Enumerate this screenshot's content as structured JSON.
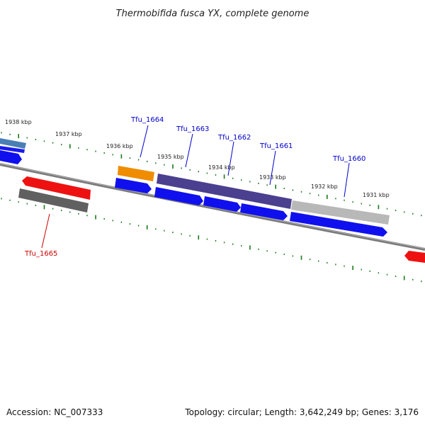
{
  "title": "Thermobifida fusca YX, complete genome",
  "footer": {
    "accession": "Accession: NC_007333",
    "stats": "Topology: circular; Length: 3,642,249 bp; Genes: 3,176"
  },
  "colors": {
    "backbone": "#7a7a7a",
    "tick": "#1a7a1a",
    "cds_blue": "#1010ee",
    "cds_red": "#ee1111",
    "label_blue": "#0000cc",
    "label_red": "#cc0000",
    "slate": "#4b3f8f",
    "orange": "#f08c00",
    "dark_gray": "#606060",
    "light_gray": "#b8b8b8",
    "steel": "#4a7fb5"
  },
  "scale_labels": [
    "1938 kbp",
    "1937 kbp",
    "1936 kbp",
    "1935 kbp",
    "1934 kbp",
    "1933 kbp",
    "1932 kbp",
    "1931 kbp"
  ],
  "gene_labels": [
    {
      "name": "Tfu_1664",
      "color": "label_blue"
    },
    {
      "name": "Tfu_1663",
      "color": "label_blue"
    },
    {
      "name": "Tfu_1662",
      "color": "label_blue"
    },
    {
      "name": "Tfu_1661",
      "color": "label_blue"
    },
    {
      "name": "Tfu_1660",
      "color": "label_blue"
    },
    {
      "name": "Tfu_1665",
      "color": "label_red"
    }
  ]
}
